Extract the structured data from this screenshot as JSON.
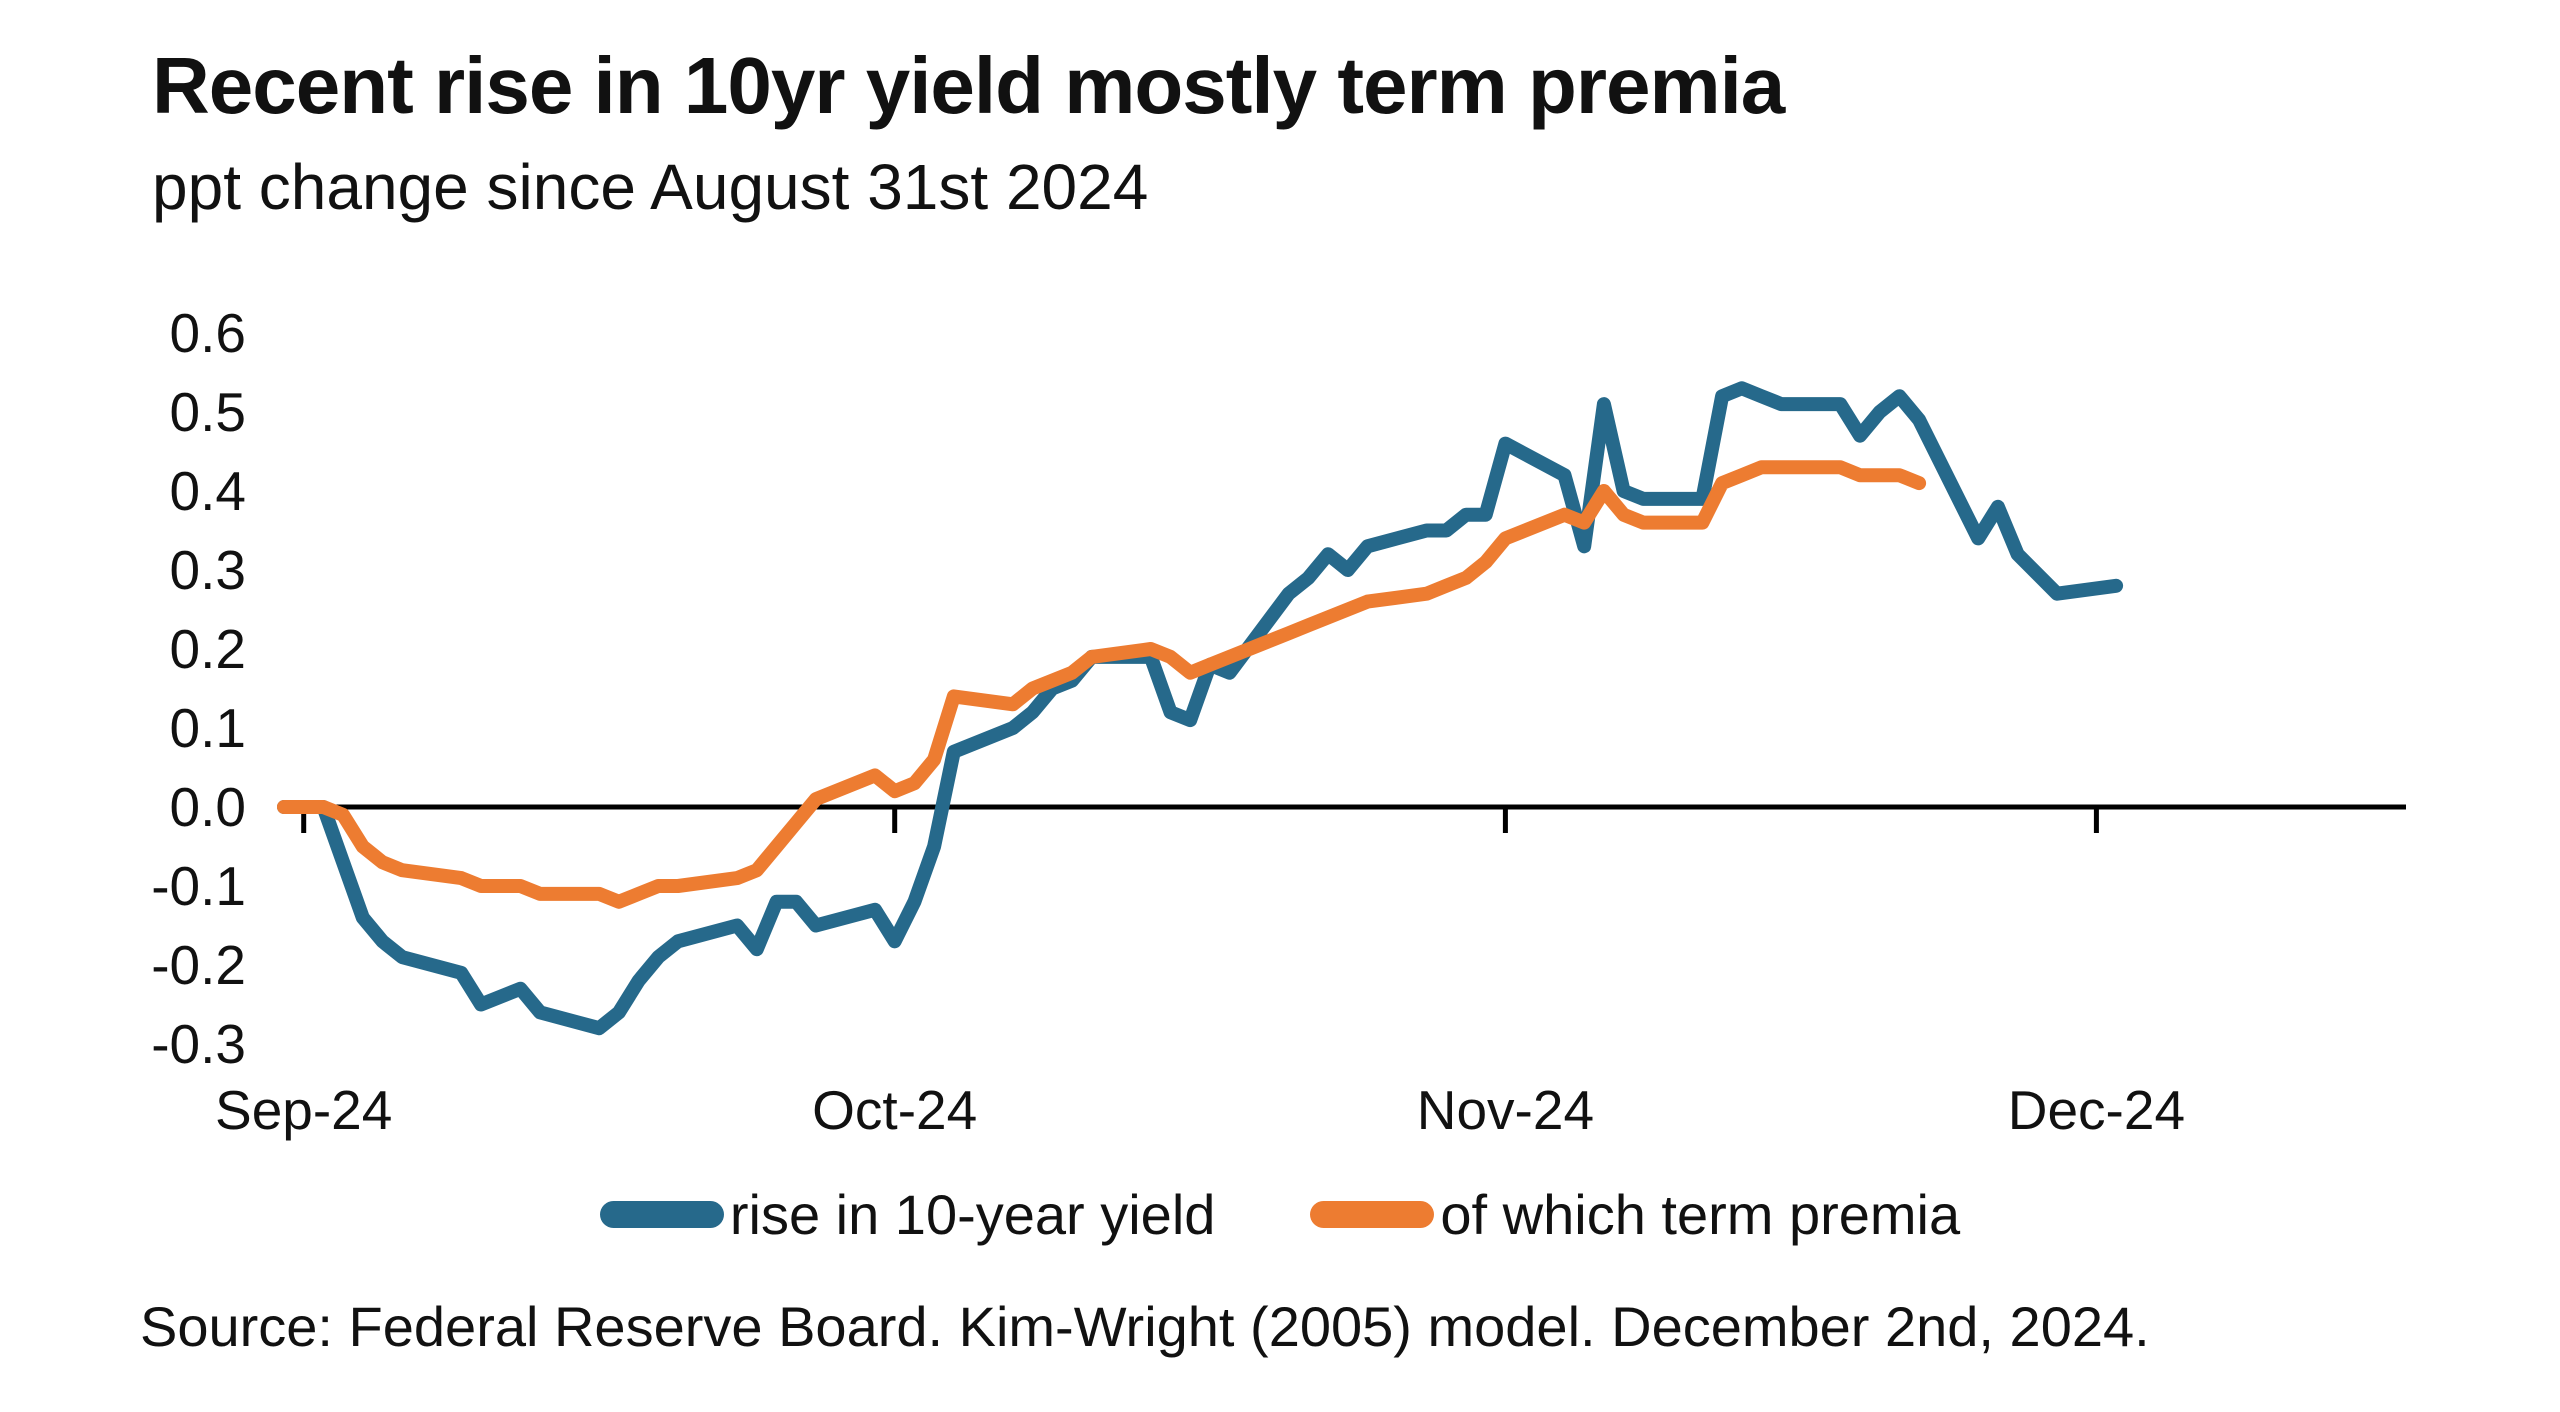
{
  "header": {
    "title": "Recent rise in 10yr yield mostly term premia",
    "subtitle": "ppt change since August 31st 2024"
  },
  "source_note": "Source: Federal Reserve Board. Kim-Wright (2005) model. December 2nd, 2024.",
  "colors": {
    "yield_line": "#26698b",
    "term_premia_line": "#ed7c31",
    "axis": "#000000",
    "text": "#111111",
    "background": "#ffffff"
  },
  "chart_data": {
    "type": "line",
    "title": "Recent rise in 10yr yield mostly term premia",
    "subtitle": "ppt change since August 31st 2024",
    "xlabel": "",
    "ylabel": "ppt change since August 31st 2024",
    "grid": false,
    "legend_position": "bottom",
    "y_axis": {
      "range": [
        -0.37,
        0.66
      ],
      "ticks": [
        {
          "label": "0.6",
          "value": 0.6
        },
        {
          "label": "0.5",
          "value": 0.5
        },
        {
          "label": "0.4",
          "value": 0.4
        },
        {
          "label": "0.3",
          "value": 0.3
        },
        {
          "label": "0.2",
          "value": 0.2
        },
        {
          "label": "0.1",
          "value": 0.1
        },
        {
          "label": "0.0",
          "value": 0.0
        },
        {
          "label": "-0.1",
          "value": -0.1
        },
        {
          "label": "-0.2",
          "value": -0.2
        },
        {
          "label": "-0.3",
          "value": -0.3
        }
      ]
    },
    "x_axis": {
      "range": [
        "2024-08-31",
        "2024-12-17"
      ],
      "ticks": [
        {
          "label": "Sep-24",
          "date": "2024-09-01"
        },
        {
          "label": "Oct-24",
          "date": "2024-10-01"
        },
        {
          "label": "Nov-24",
          "date": "2024-11-01"
        },
        {
          "label": "Dec-24",
          "date": "2024-12-01"
        }
      ]
    },
    "series": [
      {
        "name": "rise in 10-year yield",
        "color": "#26698b",
        "points": [
          [
            "2024-08-31",
            0.0
          ],
          [
            "2024-09-02",
            0.0
          ],
          [
            "2024-09-03",
            -0.07
          ],
          [
            "2024-09-04",
            -0.14
          ],
          [
            "2024-09-05",
            -0.17
          ],
          [
            "2024-09-06",
            -0.19
          ],
          [
            "2024-09-09",
            -0.21
          ],
          [
            "2024-09-10",
            -0.25
          ],
          [
            "2024-09-11",
            -0.24
          ],
          [
            "2024-09-12",
            -0.23
          ],
          [
            "2024-09-13",
            -0.26
          ],
          [
            "2024-09-16",
            -0.28
          ],
          [
            "2024-09-17",
            -0.26
          ],
          [
            "2024-09-18",
            -0.22
          ],
          [
            "2024-09-19",
            -0.19
          ],
          [
            "2024-09-20",
            -0.17
          ],
          [
            "2024-09-23",
            -0.15
          ],
          [
            "2024-09-24",
            -0.18
          ],
          [
            "2024-09-25",
            -0.12
          ],
          [
            "2024-09-26",
            -0.12
          ],
          [
            "2024-09-27",
            -0.15
          ],
          [
            "2024-09-30",
            -0.13
          ],
          [
            "2024-10-01",
            -0.17
          ],
          [
            "2024-10-02",
            -0.12
          ],
          [
            "2024-10-03",
            -0.05
          ],
          [
            "2024-10-04",
            0.07
          ],
          [
            "2024-10-07",
            0.1
          ],
          [
            "2024-10-08",
            0.12
          ],
          [
            "2024-10-09",
            0.15
          ],
          [
            "2024-10-10",
            0.16
          ],
          [
            "2024-10-11",
            0.19
          ],
          [
            "2024-10-14",
            0.19
          ],
          [
            "2024-10-15",
            0.12
          ],
          [
            "2024-10-16",
            0.11
          ],
          [
            "2024-10-17",
            0.18
          ],
          [
            "2024-10-18",
            0.17
          ],
          [
            "2024-10-21",
            0.27
          ],
          [
            "2024-10-22",
            0.29
          ],
          [
            "2024-10-23",
            0.32
          ],
          [
            "2024-10-24",
            0.3
          ],
          [
            "2024-10-25",
            0.33
          ],
          [
            "2024-10-28",
            0.35
          ],
          [
            "2024-10-29",
            0.35
          ],
          [
            "2024-10-30",
            0.37
          ],
          [
            "2024-10-31",
            0.37
          ],
          [
            "2024-11-01",
            0.46
          ],
          [
            "2024-11-04",
            0.42
          ],
          [
            "2024-11-05",
            0.33
          ],
          [
            "2024-11-06",
            0.51
          ],
          [
            "2024-11-07",
            0.4
          ],
          [
            "2024-11-08",
            0.39
          ],
          [
            "2024-11-11",
            0.39
          ],
          [
            "2024-11-12",
            0.52
          ],
          [
            "2024-11-13",
            0.53
          ],
          [
            "2024-11-14",
            0.52
          ],
          [
            "2024-11-15",
            0.51
          ],
          [
            "2024-11-18",
            0.51
          ],
          [
            "2024-11-19",
            0.47
          ],
          [
            "2024-11-20",
            0.5
          ],
          [
            "2024-11-21",
            0.52
          ],
          [
            "2024-11-22",
            0.49
          ],
          [
            "2024-11-25",
            0.34
          ],
          [
            "2024-11-26",
            0.38
          ],
          [
            "2024-11-27",
            0.32
          ],
          [
            "2024-11-29",
            0.27
          ],
          [
            "2024-12-02",
            0.28
          ]
        ]
      },
      {
        "name": "of which term premia",
        "color": "#ed7c31",
        "points": [
          [
            "2024-08-31",
            0.0
          ],
          [
            "2024-09-02",
            0.0
          ],
          [
            "2024-09-03",
            -0.01
          ],
          [
            "2024-09-04",
            -0.05
          ],
          [
            "2024-09-05",
            -0.07
          ],
          [
            "2024-09-06",
            -0.08
          ],
          [
            "2024-09-09",
            -0.09
          ],
          [
            "2024-09-10",
            -0.1
          ],
          [
            "2024-09-11",
            -0.1
          ],
          [
            "2024-09-12",
            -0.1
          ],
          [
            "2024-09-13",
            -0.11
          ],
          [
            "2024-09-16",
            -0.11
          ],
          [
            "2024-09-17",
            -0.12
          ],
          [
            "2024-09-18",
            -0.11
          ],
          [
            "2024-09-19",
            -0.1
          ],
          [
            "2024-09-20",
            -0.1
          ],
          [
            "2024-09-23",
            -0.09
          ],
          [
            "2024-09-24",
            -0.08
          ],
          [
            "2024-09-25",
            -0.05
          ],
          [
            "2024-09-26",
            -0.02
          ],
          [
            "2024-09-27",
            0.01
          ],
          [
            "2024-09-30",
            0.04
          ],
          [
            "2024-10-01",
            0.02
          ],
          [
            "2024-10-02",
            0.03
          ],
          [
            "2024-10-03",
            0.06
          ],
          [
            "2024-10-04",
            0.14
          ],
          [
            "2024-10-07",
            0.13
          ],
          [
            "2024-10-08",
            0.15
          ],
          [
            "2024-10-09",
            0.16
          ],
          [
            "2024-10-10",
            0.17
          ],
          [
            "2024-10-11",
            0.19
          ],
          [
            "2024-10-14",
            0.2
          ],
          [
            "2024-10-15",
            0.19
          ],
          [
            "2024-10-16",
            0.17
          ],
          [
            "2024-10-17",
            0.18
          ],
          [
            "2024-10-18",
            0.19
          ],
          [
            "2024-10-21",
            0.22
          ],
          [
            "2024-10-22",
            0.23
          ],
          [
            "2024-10-23",
            0.24
          ],
          [
            "2024-10-24",
            0.25
          ],
          [
            "2024-10-25",
            0.26
          ],
          [
            "2024-10-28",
            0.27
          ],
          [
            "2024-10-29",
            0.28
          ],
          [
            "2024-10-30",
            0.29
          ],
          [
            "2024-10-31",
            0.31
          ],
          [
            "2024-11-01",
            0.34
          ],
          [
            "2024-11-04",
            0.37
          ],
          [
            "2024-11-05",
            0.36
          ],
          [
            "2024-11-06",
            0.4
          ],
          [
            "2024-11-07",
            0.37
          ],
          [
            "2024-11-08",
            0.36
          ],
          [
            "2024-11-11",
            0.36
          ],
          [
            "2024-11-12",
            0.41
          ],
          [
            "2024-11-13",
            0.42
          ],
          [
            "2024-11-14",
            0.43
          ],
          [
            "2024-11-15",
            0.43
          ],
          [
            "2024-11-18",
            0.43
          ],
          [
            "2024-11-19",
            0.42
          ],
          [
            "2024-11-20",
            0.42
          ],
          [
            "2024-11-21",
            0.42
          ],
          [
            "2024-11-22",
            0.41
          ]
        ]
      }
    ]
  }
}
